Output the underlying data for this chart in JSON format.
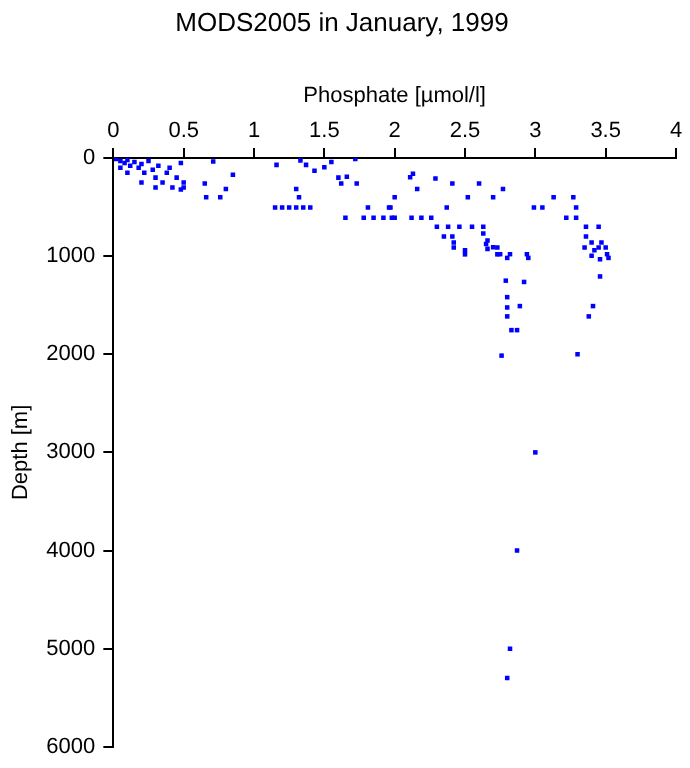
{
  "chart_data": {
    "type": "scatter",
    "title": "MODS2005 in January, 1999",
    "xlabel": "Phosphate [µmol/l]",
    "ylabel": "Depth [m]",
    "xlim": [
      0,
      4
    ],
    "xticks": [
      0,
      0.5,
      1,
      1.5,
      2,
      2.5,
      3,
      3.5,
      4
    ],
    "ylim": [
      6000,
      0
    ],
    "yticks": [
      0,
      1000,
      2000,
      3000,
      4000,
      5000,
      6000
    ],
    "grid": false,
    "legend": false,
    "marker": "square",
    "series": [
      {
        "color": "#0000ff",
        "x": [
          0.02,
          0.05,
          0.08,
          0.1,
          0.12,
          0.15,
          0.18,
          0.2,
          0.22,
          0.25,
          0.28,
          0.3,
          0.32,
          0.35,
          0.38,
          0.4,
          0.42,
          0.45,
          0.48,
          0.5,
          0.1,
          0.2,
          0.3,
          0.05,
          0.48,
          0.5,
          0.65,
          0.66,
          0.71,
          0.76,
          0.8,
          0.85,
          1.16,
          1.15,
          1.2,
          1.25,
          1.3,
          1.35,
          1.4,
          1.3,
          1.32,
          1.33,
          1.37,
          1.43,
          1.5,
          1.55,
          1.6,
          1.62,
          1.65,
          1.66,
          1.72,
          1.73,
          1.81,
          1.78,
          1.85,
          1.92,
          1.98,
          1.96,
          2.11,
          2.13,
          2.16,
          2.29,
          2.41,
          2.6,
          2.77,
          2.52,
          2.7,
          2.0,
          1.97,
          2.37,
          2.99,
          3.05,
          3.13,
          3.27,
          3.29,
          2.0,
          2.12,
          2.19,
          2.26,
          2.3,
          2.38,
          2.46,
          2.55,
          2.63,
          3.22,
          3.29,
          3.36,
          3.45,
          2.35,
          2.41,
          2.63,
          2.66,
          2.7,
          2.42,
          2.5,
          2.75,
          2.82,
          2.94,
          3.36,
          3.4,
          3.47,
          3.42,
          3.51,
          2.42,
          2.5,
          2.65,
          2.66,
          2.73,
          2.73,
          2.8,
          2.95,
          3.35,
          3.45,
          3.5,
          3.4,
          3.46,
          3.52,
          2.79,
          2.92,
          3.46,
          2.8,
          2.8,
          2.89,
          3.41,
          2.8,
          3.38,
          2.83,
          2.87,
          2.76,
          3.3,
          3.0,
          2.87,
          2.82,
          2.8
        ],
        "values": [
          10,
          30,
          50,
          20,
          80,
          40,
          100,
          60,
          150,
          30,
          120,
          200,
          80,
          250,
          150,
          100,
          300,
          200,
          50,
          300,
          150,
          250,
          300,
          100,
          320,
          250,
          260,
          400,
          35,
          400,
          316,
          170,
          70,
          505,
          505,
          505,
          505,
          505,
          505,
          316,
          400,
          25,
          70,
          130,
          95,
          40,
          200,
          260,
          610,
          190,
          10,
          260,
          505,
          610,
          610,
          610,
          610,
          505,
          196,
          160,
          316,
          210,
          260,
          260,
          316,
          400,
          400,
          400,
          505,
          505,
          505,
          505,
          400,
          400,
          505,
          610,
          610,
          610,
          610,
          700,
          700,
          700,
          700,
          700,
          610,
          610,
          700,
          700,
          800,
          800,
          770,
          840,
          910,
          860,
          940,
          980,
          980,
          980,
          800,
          860,
          860,
          940,
          980,
          912,
          982,
          877,
          926,
          912,
          982,
          1018,
          1018,
          912,
          912,
          912,
          996,
          1032,
          1018,
          1250,
          1263,
          1207,
          1418,
          1523,
          1509,
          1509,
          1614,
          1614,
          1754,
          1754,
          2014,
          2000,
          3000,
          4000,
          5000,
          5300
        ]
      }
    ]
  }
}
